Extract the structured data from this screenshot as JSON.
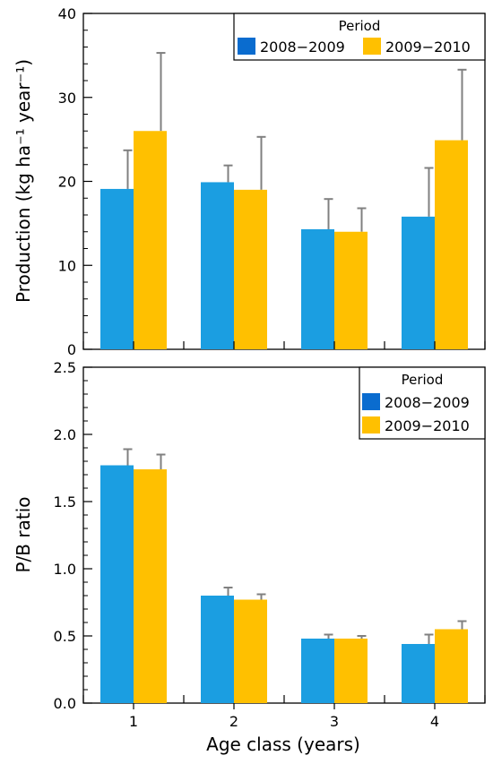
{
  "colors": {
    "series1": "#1b9ee1",
    "series2": "#ffc000",
    "legend_series1": "#0a6ccf",
    "error_bar": "#808080"
  },
  "x_axis": {
    "label": "Age class (years)",
    "ticks": [
      "1",
      "2",
      "3",
      "4"
    ]
  },
  "chart_data": [
    {
      "type": "bar",
      "categories": [
        "1",
        "2",
        "3",
        "4"
      ],
      "series": [
        {
          "name": "2008−2009",
          "values": [
            19.1,
            19.9,
            14.3,
            15.8
          ],
          "errors": [
            4.6,
            2.0,
            3.6,
            5.8
          ]
        },
        {
          "name": "2009−2010",
          "values": [
            26.0,
            19.0,
            14.0,
            24.9
          ],
          "errors": [
            9.3,
            6.3,
            2.8,
            8.4
          ]
        }
      ],
      "xlabel": "Age class (years)",
      "ylabel": "Production (kg ha⁻¹ year⁻¹)",
      "ylim": [
        0,
        40
      ],
      "yticks": [
        "0",
        "10",
        "20",
        "30",
        "40"
      ],
      "legend": {
        "title": "Period",
        "position": "top-right",
        "layout": "horizontal"
      },
      "grid": false
    },
    {
      "type": "bar",
      "categories": [
        "1",
        "2",
        "3",
        "4"
      ],
      "series": [
        {
          "name": "2008−2009",
          "values": [
            1.77,
            0.8,
            0.48,
            0.44
          ],
          "errors": [
            0.12,
            0.06,
            0.03,
            0.07
          ]
        },
        {
          "name": "2009−2010",
          "values": [
            1.74,
            0.77,
            0.48,
            0.55
          ],
          "errors": [
            0.11,
            0.04,
            0.02,
            0.06
          ]
        }
      ],
      "xlabel": "Age class (years)",
      "ylabel": "P/B ratio",
      "ylim": [
        0,
        2.5
      ],
      "yticks": [
        "0.0",
        "0.5",
        "1.0",
        "1.5",
        "2.0",
        "2.5"
      ],
      "legend": {
        "title": "Period",
        "position": "top-right",
        "layout": "vertical"
      },
      "grid": false
    }
  ]
}
